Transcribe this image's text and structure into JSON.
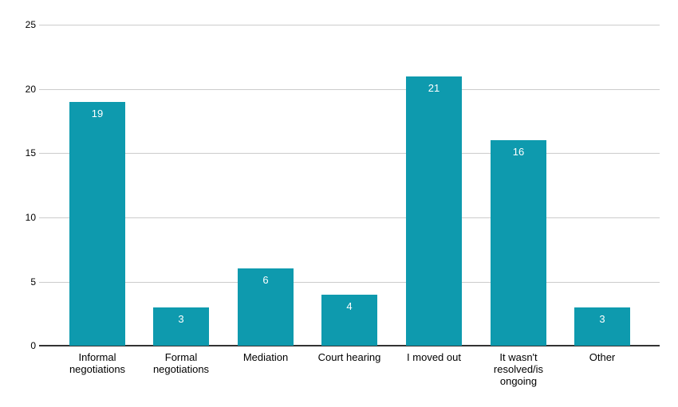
{
  "chart_data": {
    "type": "bar",
    "categories": [
      "Informal negotiations",
      "Formal negotiations",
      "Mediation",
      "Court hearing",
      "I moved out",
      "It wasn't resolved/is ongoing",
      "Other"
    ],
    "values": [
      19,
      3,
      6,
      4,
      21,
      16,
      3
    ],
    "bar_labels": [
      "19",
      "3",
      "6",
      "4",
      "21",
      "16",
      "3"
    ],
    "title": "",
    "xlabel": "",
    "ylabel": "",
    "ylim": [
      0,
      25
    ],
    "yticks": [
      0,
      5,
      10,
      15,
      20,
      25
    ],
    "grid": true,
    "legend": "none",
    "colors": {
      "bar": "#0e9aae",
      "bar_label_text": "#ffffff",
      "gridline": "#cccccc",
      "baseline": "#333333",
      "axis_text": "#000000",
      "background": "#ffffff"
    }
  }
}
